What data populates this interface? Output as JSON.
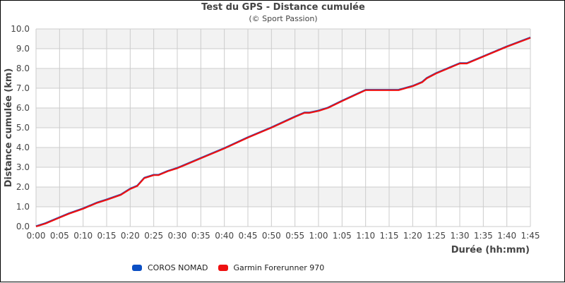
{
  "chart_data": {
    "type": "line",
    "title": "Test du GPS - Distance cumulée",
    "subtitle": "(© Sport Passion)",
    "xlabel": "Durée (hh:mm)",
    "ylabel": "Distance cumulée (km)",
    "xlim_minutes": [
      0,
      105
    ],
    "ylim": [
      0,
      10
    ],
    "grid": true,
    "legend_position": "bottom",
    "y_ticks": [
      "0.0",
      "1.0",
      "2.0",
      "3.0",
      "4.0",
      "5.0",
      "6.0",
      "7.0",
      "8.0",
      "9.0",
      "10.0"
    ],
    "x_ticks": [
      "0:00",
      "0:05",
      "0:10",
      "0:15",
      "0:20",
      "0:25",
      "0:30",
      "0:35",
      "0:40",
      "0:45",
      "0:50",
      "0:55",
      "1:00",
      "1:05",
      "1:10",
      "1:15",
      "1:20",
      "1:25",
      "1:30",
      "1:35",
      "1:40",
      "1:45"
    ],
    "x_minutes": [
      0,
      2,
      5,
      7,
      10,
      13,
      15,
      18,
      20,
      21.5,
      23,
      25,
      26,
      28,
      30,
      35,
      40,
      45,
      50,
      55,
      57,
      58,
      60,
      62,
      65,
      70,
      77,
      80,
      82,
      83,
      85,
      90,
      91.5,
      95,
      100,
      105
    ],
    "series": [
      {
        "name": "COROS NOMAD",
        "color": "#0b4fc4",
        "values": [
          0.0,
          0.15,
          0.45,
          0.65,
          0.9,
          1.2,
          1.35,
          1.6,
          1.9,
          2.05,
          2.45,
          2.6,
          2.6,
          2.8,
          2.95,
          3.45,
          3.95,
          4.5,
          5.0,
          5.55,
          5.75,
          5.75,
          5.85,
          6.0,
          6.35,
          6.9,
          6.9,
          7.1,
          7.3,
          7.5,
          7.75,
          8.25,
          8.25,
          8.6,
          9.1,
          9.55
        ]
      },
      {
        "name": "Garmin Forerunner 970",
        "color": "#ee1111",
        "values": [
          0.0,
          0.15,
          0.45,
          0.65,
          0.9,
          1.2,
          1.35,
          1.6,
          1.9,
          2.05,
          2.45,
          2.6,
          2.6,
          2.8,
          2.95,
          3.45,
          3.95,
          4.5,
          5.0,
          5.55,
          5.75,
          5.75,
          5.85,
          6.0,
          6.35,
          6.9,
          6.9,
          7.1,
          7.3,
          7.5,
          7.75,
          8.25,
          8.25,
          8.6,
          9.1,
          9.55
        ]
      }
    ]
  },
  "colors": {
    "grid": "#cccccc",
    "band": "#f2f2f2",
    "text": "#444444"
  }
}
